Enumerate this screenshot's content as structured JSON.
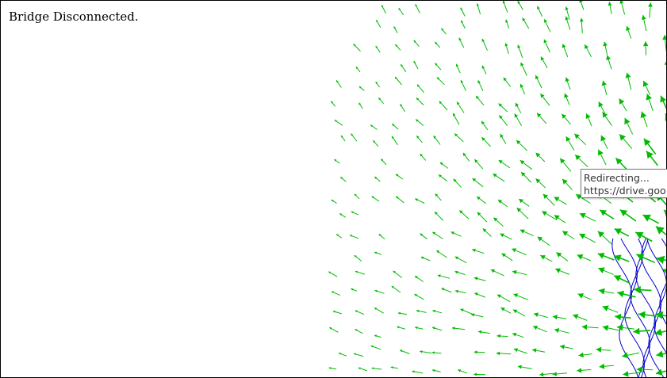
{
  "status": {
    "text": "Bridge Disconnected."
  },
  "tooltip": {
    "line1": "Redirecting...",
    "line2": "https://drive.goo"
  },
  "visualization": {
    "arrow_color": "#00bb00",
    "curve_color": "#0000cc",
    "frame_color": "#000000",
    "background": "#ffffff"
  }
}
